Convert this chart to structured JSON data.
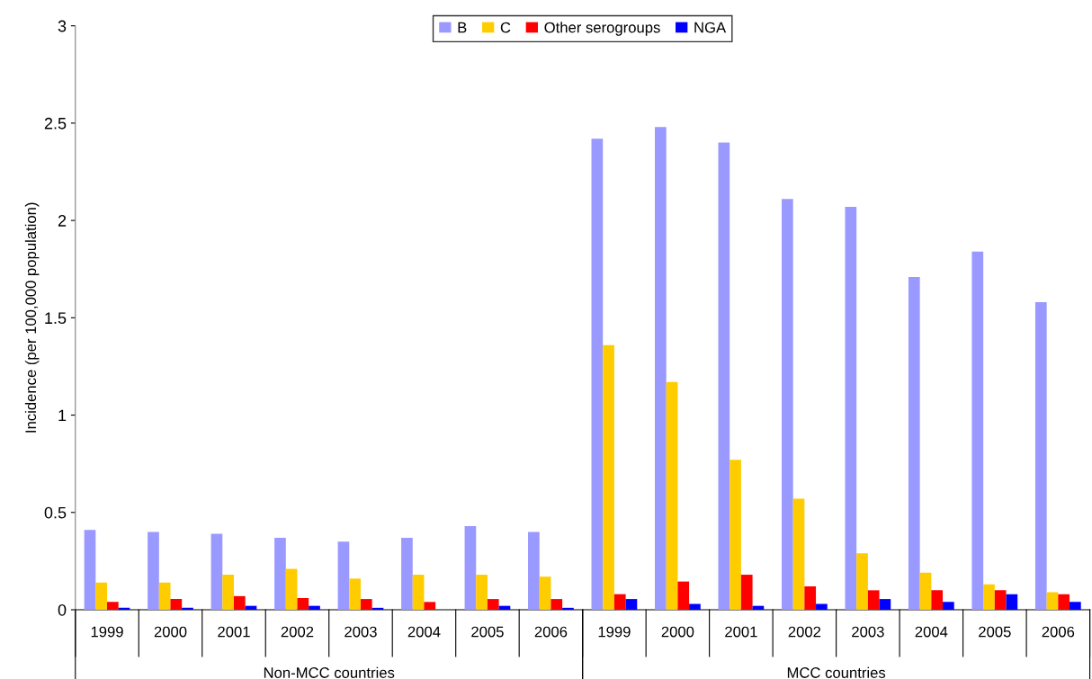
{
  "chart_data": {
    "type": "bar",
    "ylabel": "Incidence (per 100,000 population)",
    "categories": [
      "1999",
      "2000",
      "2001",
      "2002",
      "2003",
      "2004",
      "2005",
      "2006",
      "1999",
      "2000",
      "2001",
      "2002",
      "2003",
      "2004",
      "2005",
      "2006"
    ],
    "annotations": [
      "Non-MCC countries",
      "MCC countries"
    ],
    "series": [
      {
        "name": "B",
        "color": "#9999ff",
        "values": [
          0.41,
          0.4,
          0.39,
          0.37,
          0.35,
          0.37,
          0.43,
          0.4,
          2.42,
          2.48,
          2.4,
          2.11,
          2.07,
          1.71,
          1.84,
          1.58
        ]
      },
      {
        "name": "C",
        "color": "#ffcc00",
        "values": [
          0.14,
          0.14,
          0.18,
          0.21,
          0.16,
          0.18,
          0.18,
          0.17,
          1.36,
          1.17,
          0.77,
          0.57,
          0.29,
          0.19,
          0.13,
          0.09
        ]
      },
      {
        "name": "Other serogroups",
        "color": "#ff0000",
        "values": [
          0.04,
          0.055,
          0.07,
          0.06,
          0.055,
          0.04,
          0.055,
          0.055,
          0.08,
          0.145,
          0.18,
          0.12,
          0.1,
          0.1,
          0.1,
          0.08
        ]
      },
      {
        "name": "NGA",
        "color": "#0000ff",
        "values": [
          0.01,
          0.01,
          0.02,
          0.02,
          0.01,
          0,
          0.02,
          0.01,
          0.055,
          0.03,
          0.02,
          0.03,
          0.055,
          0.04,
          0.08,
          0.04
        ]
      }
    ],
    "ylim": [
      0,
      3
    ],
    "yticks": [
      0,
      0.5,
      1,
      1.5,
      2,
      2.5,
      3
    ],
    "grid": false,
    "legend": "top"
  }
}
